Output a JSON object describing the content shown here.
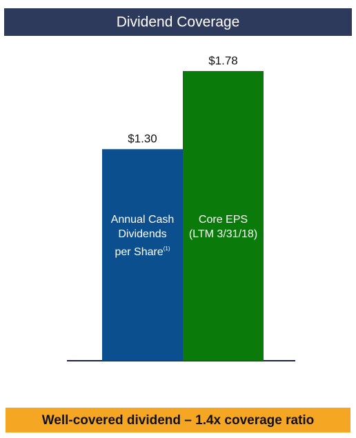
{
  "chart_data": {
    "type": "bar",
    "title": "Dividend Coverage",
    "categories": [
      "Annual Cash\nDividends\nper Share",
      "Core EPS\n(LTM 3/31/18)"
    ],
    "footnote_marker": "(1)",
    "values": [
      1.3,
      1.78
    ],
    "value_labels": [
      "$1.30",
      "$1.78"
    ],
    "colors": [
      "#0b4f8e",
      "#0a7a0a"
    ],
    "footer": "Well-covered dividend – 1.4x coverage ratio"
  }
}
